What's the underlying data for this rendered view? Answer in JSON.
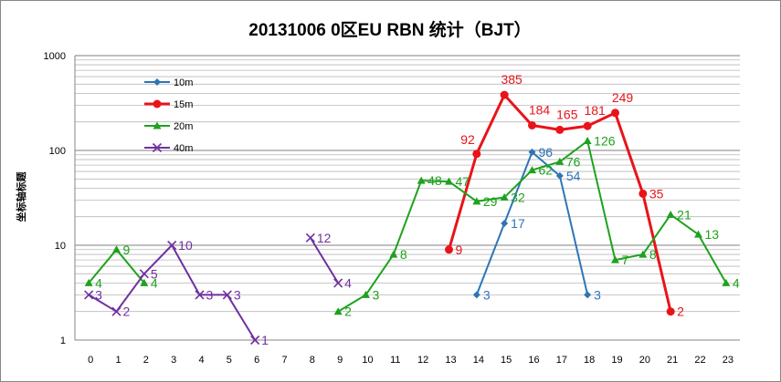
{
  "chart_data": {
    "type": "line",
    "title": "20131006 0区EU RBN 统计（BJT）",
    "xlabel": "",
    "ylabel": "坐标轴标题",
    "yscale": "log",
    "ylim": [
      1,
      1000
    ],
    "y_ticks": [
      "1",
      "10",
      "100",
      "1000"
    ],
    "categories": [
      "0",
      "1",
      "2",
      "3",
      "4",
      "5",
      "6",
      "7",
      "8",
      "9",
      "10",
      "11",
      "12",
      "13",
      "14",
      "15",
      "16",
      "17",
      "18",
      "19",
      "20",
      "21",
      "22",
      "23"
    ],
    "grid": true,
    "legend_position": "top-left",
    "series": [
      {
        "name": "10m",
        "color": "#2E75B6",
        "marker": "diamond",
        "values": [
          null,
          null,
          null,
          null,
          null,
          null,
          null,
          null,
          null,
          null,
          null,
          null,
          null,
          null,
          3,
          17,
          96,
          54,
          3,
          null,
          null,
          null,
          null,
          null
        ],
        "labels": [
          null,
          null,
          null,
          null,
          null,
          null,
          null,
          null,
          null,
          null,
          null,
          null,
          null,
          null,
          "3",
          "17",
          "96",
          "54",
          "3",
          null,
          null,
          null,
          null,
          null
        ]
      },
      {
        "name": "15m",
        "color": "#E8141A",
        "marker": "circle",
        "values": [
          null,
          null,
          null,
          null,
          null,
          null,
          null,
          null,
          null,
          null,
          null,
          null,
          null,
          9,
          92,
          385,
          184,
          165,
          181,
          249,
          35,
          2,
          null,
          null
        ],
        "labels": [
          null,
          null,
          null,
          null,
          null,
          null,
          null,
          null,
          null,
          null,
          null,
          null,
          null,
          "9",
          "92",
          "385",
          "184",
          "165",
          "181",
          "249",
          "35",
          "2",
          null,
          null
        ]
      },
      {
        "name": "20m",
        "color": "#1DA21D",
        "marker": "triangle",
        "values": [
          4,
          9,
          4,
          null,
          null,
          null,
          null,
          null,
          null,
          2,
          3,
          8,
          48,
          47,
          29,
          32,
          62,
          76,
          126,
          7,
          8,
          21,
          13,
          4
        ],
        "labels": [
          "4",
          "9",
          "4",
          null,
          null,
          null,
          null,
          null,
          null,
          "2",
          "3",
          "8",
          "48",
          "47",
          "29",
          "32",
          "62",
          "76",
          "126",
          "7",
          "8",
          "21",
          "13",
          "4"
        ]
      },
      {
        "name": "40m",
        "color": "#7030A0",
        "marker": "x",
        "values": [
          3,
          2,
          5,
          10,
          3,
          3,
          1,
          null,
          12,
          4,
          null,
          null,
          null,
          null,
          null,
          null,
          null,
          null,
          null,
          null,
          null,
          null,
          null,
          null
        ],
        "labels": [
          "3",
          "2",
          "5",
          "10",
          "3",
          "3",
          "1",
          null,
          "12",
          "4",
          null,
          null,
          null,
          null,
          null,
          null,
          null,
          null,
          null,
          null,
          null,
          null,
          null,
          null
        ]
      }
    ]
  }
}
